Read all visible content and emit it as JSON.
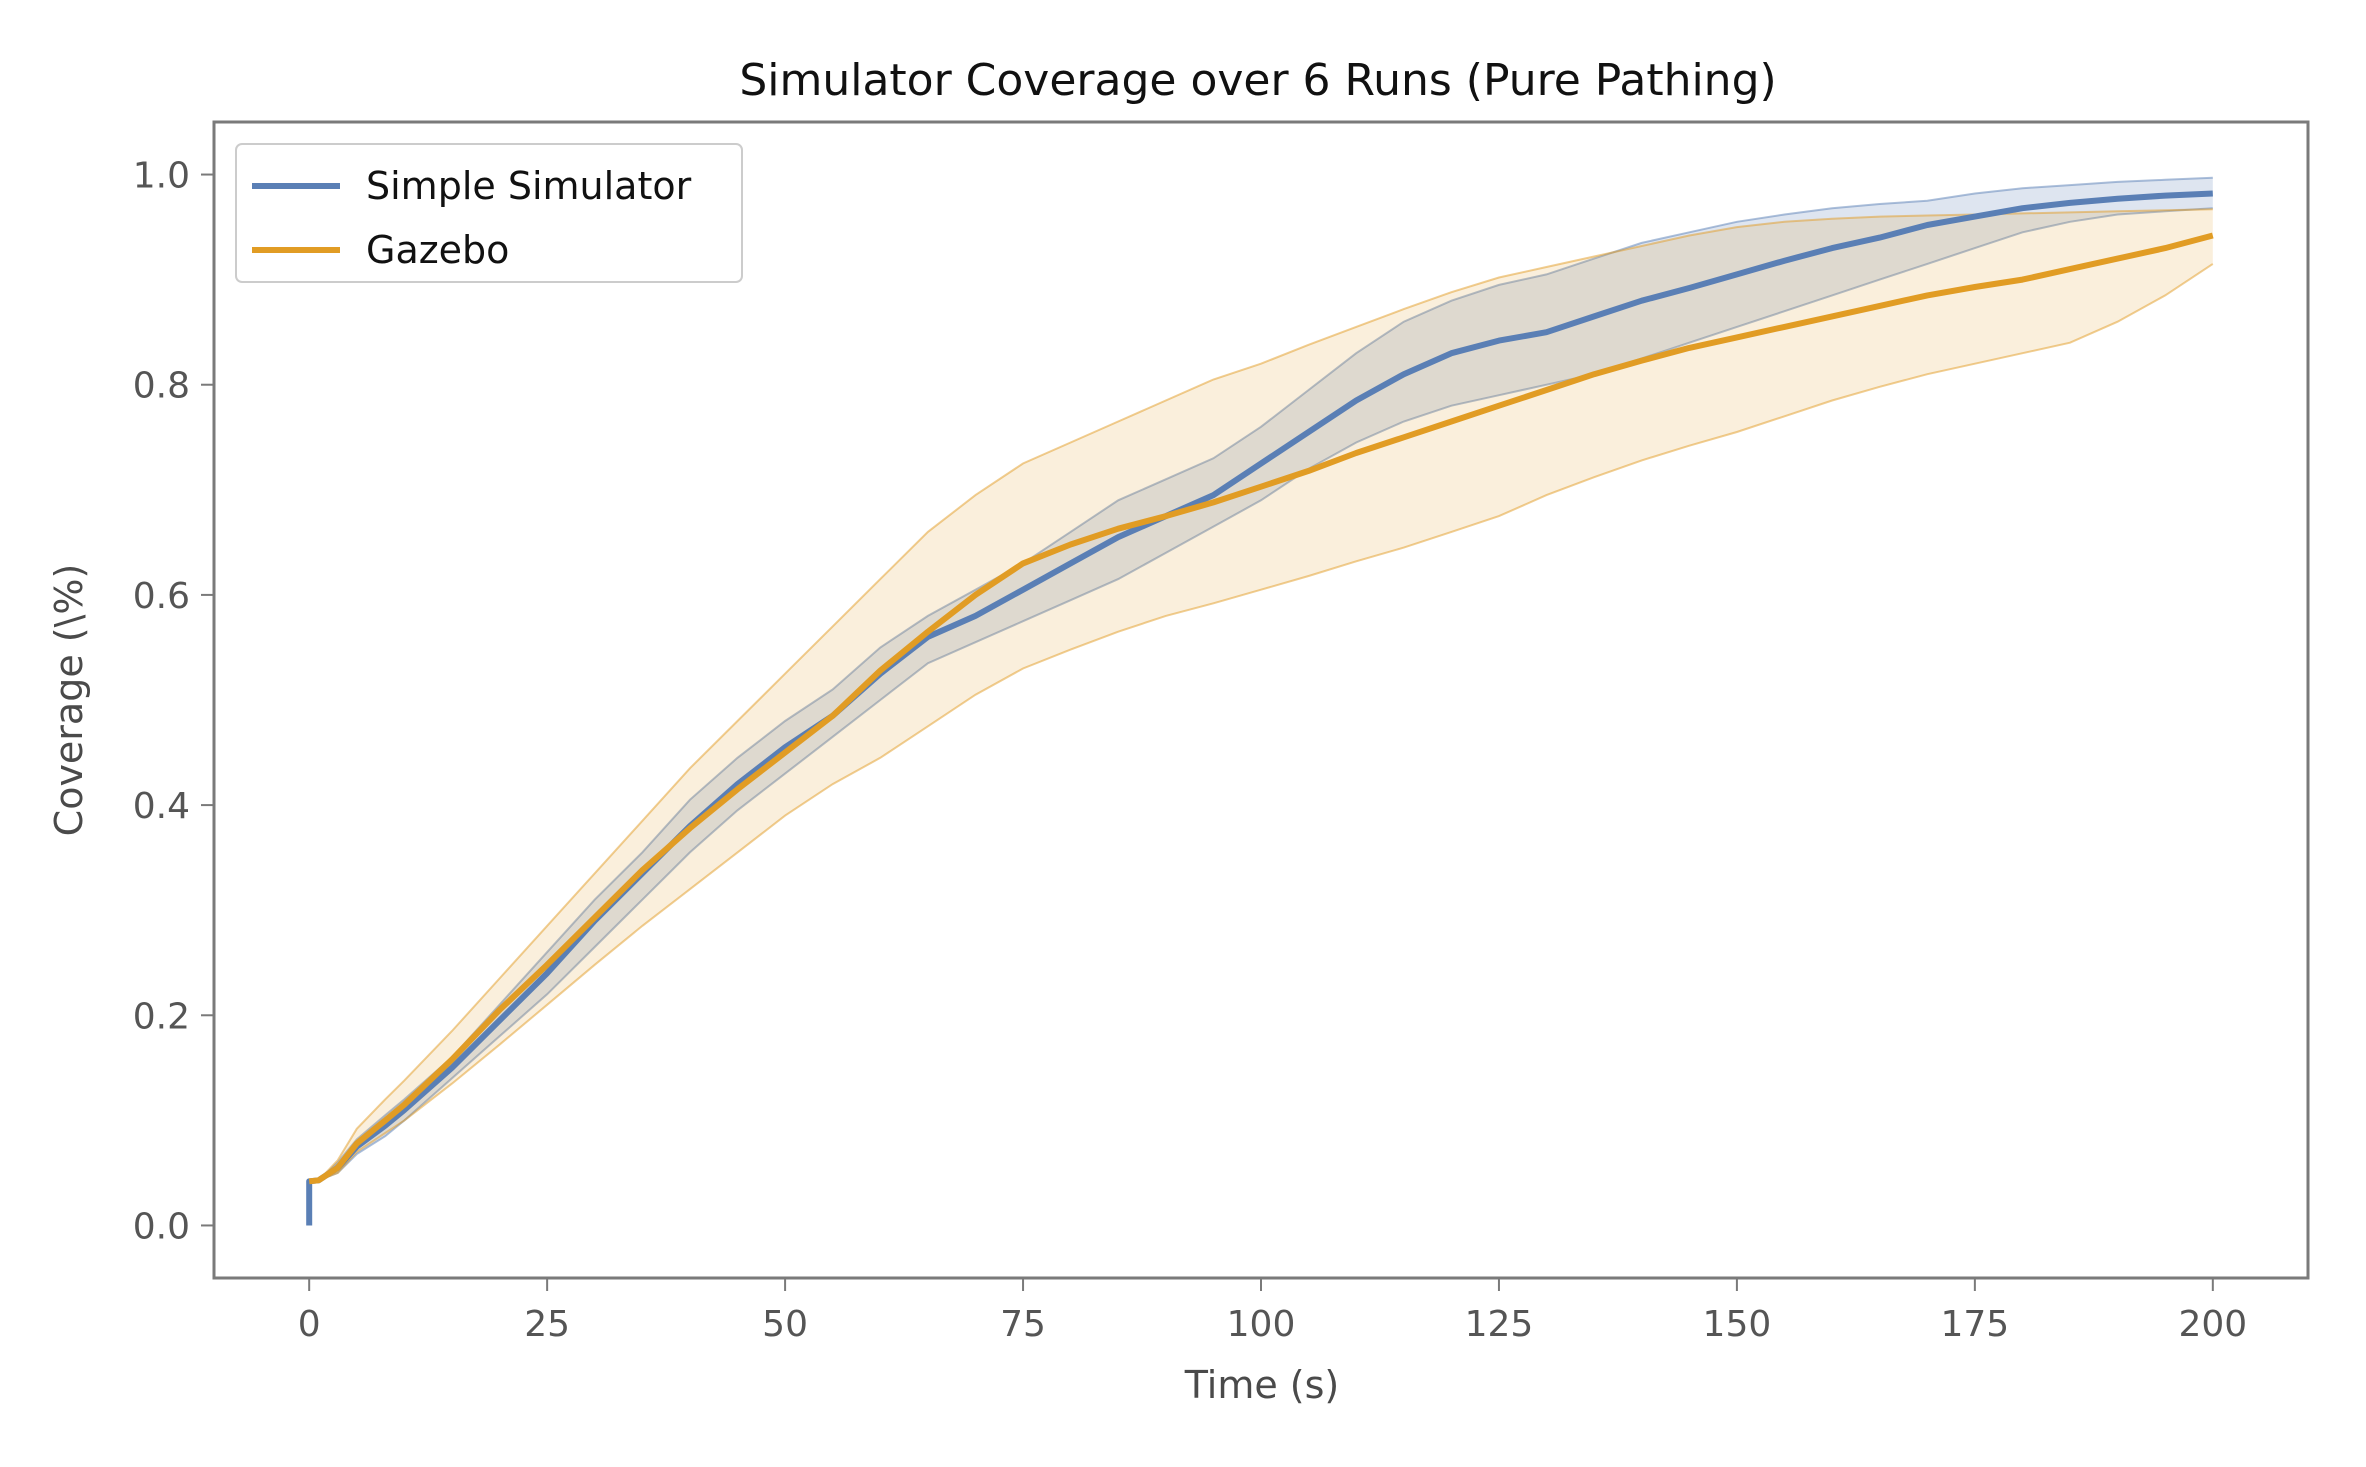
{
  "chart_data": {
    "type": "line",
    "title": "Simulator Coverage over 6 Runs (Pure Pathing)",
    "xlabel": "Time (s)",
    "ylabel": "Coverage (\\%)",
    "xlim": [
      -10,
      210
    ],
    "ylim": [
      -0.05,
      1.05
    ],
    "xticks": [
      0,
      25,
      50,
      75,
      100,
      125,
      150,
      175,
      200
    ],
    "yticks": [
      0.0,
      0.2,
      0.4,
      0.6,
      0.8,
      1.0
    ],
    "xtick_labels": [
      "0",
      "25",
      "50",
      "75",
      "100",
      "125",
      "150",
      "175",
      "200"
    ],
    "ytick_labels": [
      "0.0",
      "0.2",
      "0.4",
      "0.6",
      "0.8",
      "1.0"
    ],
    "grid": false,
    "legend_position": "top-left",
    "series": [
      {
        "name": "Simple Simulator",
        "color": "#5a7fb5",
        "x": [
          0,
          0,
          1,
          3,
          5,
          8,
          10,
          15,
          20,
          25,
          30,
          35,
          40,
          45,
          50,
          55,
          60,
          65,
          70,
          75,
          80,
          85,
          90,
          95,
          100,
          105,
          110,
          115,
          120,
          125,
          130,
          135,
          140,
          145,
          150,
          155,
          160,
          165,
          170,
          175,
          180,
          185,
          190,
          195,
          200
        ],
        "y": [
          0.0,
          0.042,
          0.043,
          0.055,
          0.075,
          0.095,
          0.11,
          0.15,
          0.195,
          0.24,
          0.29,
          0.335,
          0.38,
          0.42,
          0.455,
          0.485,
          0.525,
          0.56,
          0.58,
          0.605,
          0.63,
          0.655,
          0.675,
          0.695,
          0.725,
          0.755,
          0.785,
          0.81,
          0.83,
          0.842,
          0.85,
          0.865,
          0.88,
          0.892,
          0.905,
          0.918,
          0.93,
          0.94,
          0.952,
          0.96,
          0.968,
          0.973,
          0.977,
          0.98,
          0.982
        ],
        "lower": [
          0.0,
          0.042,
          0.043,
          0.05,
          0.068,
          0.085,
          0.1,
          0.14,
          0.18,
          0.22,
          0.265,
          0.31,
          0.355,
          0.395,
          0.43,
          0.465,
          0.5,
          0.535,
          0.555,
          0.575,
          0.595,
          0.615,
          0.64,
          0.665,
          0.69,
          0.72,
          0.745,
          0.765,
          0.78,
          0.79,
          0.8,
          0.81,
          0.825,
          0.84,
          0.855,
          0.87,
          0.885,
          0.9,
          0.915,
          0.93,
          0.945,
          0.955,
          0.962,
          0.965,
          0.968
        ],
        "upper": [
          0.0,
          0.042,
          0.043,
          0.06,
          0.082,
          0.105,
          0.12,
          0.16,
          0.21,
          0.26,
          0.31,
          0.355,
          0.405,
          0.445,
          0.48,
          0.51,
          0.55,
          0.58,
          0.605,
          0.63,
          0.66,
          0.69,
          0.71,
          0.73,
          0.76,
          0.795,
          0.83,
          0.86,
          0.88,
          0.895,
          0.905,
          0.92,
          0.935,
          0.945,
          0.955,
          0.962,
          0.968,
          0.972,
          0.975,
          0.982,
          0.987,
          0.99,
          0.993,
          0.995,
          0.997
        ]
      },
      {
        "name": "Gazebo",
        "color": "#e19c24",
        "x": [
          0,
          1,
          3,
          5,
          8,
          10,
          15,
          20,
          25,
          30,
          35,
          40,
          45,
          50,
          55,
          60,
          65,
          70,
          75,
          80,
          85,
          90,
          95,
          100,
          105,
          110,
          115,
          120,
          125,
          130,
          135,
          140,
          145,
          150,
          155,
          160,
          165,
          170,
          175,
          180,
          185,
          190,
          195,
          200
        ],
        "y": [
          0.042,
          0.043,
          0.055,
          0.078,
          0.1,
          0.115,
          0.158,
          0.205,
          0.248,
          0.293,
          0.338,
          0.378,
          0.415,
          0.45,
          0.485,
          0.528,
          0.565,
          0.6,
          0.63,
          0.648,
          0.663,
          0.675,
          0.688,
          0.703,
          0.718,
          0.735,
          0.75,
          0.765,
          0.78,
          0.795,
          0.81,
          0.823,
          0.835,
          0.845,
          0.855,
          0.865,
          0.875,
          0.885,
          0.893,
          0.9,
          0.91,
          0.92,
          0.93,
          0.942
        ],
        "lower": [
          0.042,
          0.043,
          0.05,
          0.07,
          0.088,
          0.1,
          0.135,
          0.172,
          0.21,
          0.248,
          0.285,
          0.32,
          0.355,
          0.39,
          0.42,
          0.445,
          0.475,
          0.505,
          0.53,
          0.548,
          0.565,
          0.58,
          0.592,
          0.605,
          0.618,
          0.632,
          0.645,
          0.66,
          0.675,
          0.695,
          0.712,
          0.728,
          0.742,
          0.755,
          0.77,
          0.785,
          0.798,
          0.81,
          0.82,
          0.83,
          0.84,
          0.86,
          0.885,
          0.915
        ],
        "upper": [
          0.042,
          0.043,
          0.062,
          0.092,
          0.12,
          0.138,
          0.185,
          0.235,
          0.285,
          0.335,
          0.385,
          0.435,
          0.48,
          0.525,
          0.57,
          0.615,
          0.66,
          0.695,
          0.725,
          0.745,
          0.765,
          0.785,
          0.805,
          0.82,
          0.838,
          0.855,
          0.872,
          0.888,
          0.902,
          0.912,
          0.922,
          0.932,
          0.942,
          0.95,
          0.955,
          0.958,
          0.96,
          0.961,
          0.962,
          0.963,
          0.964,
          0.965,
          0.966,
          0.967
        ]
      }
    ]
  }
}
